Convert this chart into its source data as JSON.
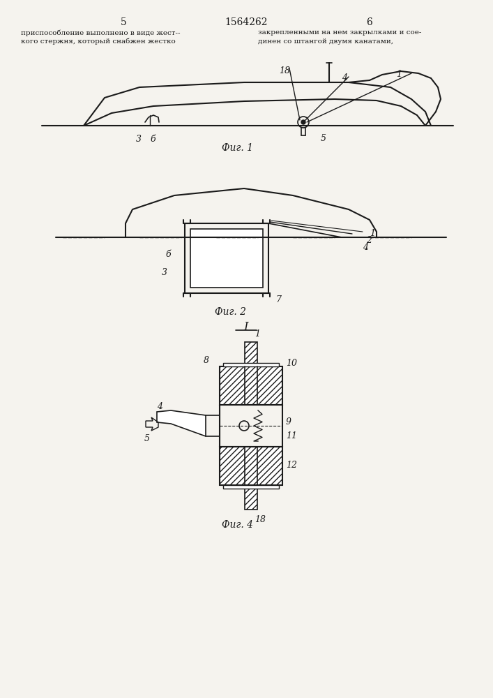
{
  "page_number_left": "5",
  "page_number_center": "1564262",
  "page_number_right": "6",
  "header_left": "приспособление выполнено в виде жест--\nкого стержня, который снабжен жестко",
  "header_right": "закрепленными на нем закрылками и сое-\nдинен со штангой двумя канатами,",
  "fig1_label": "Фиг. 1",
  "fig2_label": "Фиг. 2",
  "fig4_label": "Фиг. 4",
  "fig3_label": "I",
  "bg_color": "#f5f3ee",
  "line_color": "#1a1a1a",
  "hatch_color": "#1a1a1a"
}
